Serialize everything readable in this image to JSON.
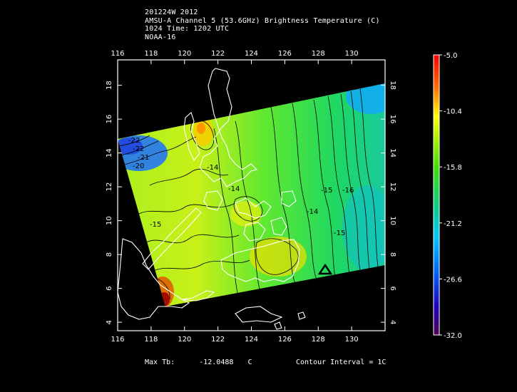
{
  "header": {
    "line1": "201224W 2012",
    "line2": "AMSU-A Channel 5 (53.6GHz) Brightness Temperature (C)",
    "line3": "1024 Time: 1202 UTC",
    "line4": "NOAA-16"
  },
  "map": {
    "lon_ticks": [
      "116",
      "118",
      "120",
      "122",
      "124",
      "126",
      "128",
      "130"
    ],
    "lat_ticks": [
      "4",
      "6",
      "8",
      "10",
      "12",
      "14",
      "16",
      "18"
    ],
    "lon_range": [
      116,
      132
    ],
    "lat_range": [
      3.5,
      19.5
    ],
    "contour_labels": [
      "-22",
      "-22",
      "-21",
      "-20",
      "-14",
      "-14",
      "-15",
      "-15",
      "-16",
      "-15",
      "-14"
    ],
    "storm_marker": "triangle-marker"
  },
  "colorbar": {
    "labels": [
      "-5.0",
      "-10.4",
      "-15.8",
      "-21.2",
      "-26.6",
      "-32.0"
    ],
    "range": [
      -32.0,
      -5.0
    ],
    "colors": [
      "#ff0000",
      "#ff8800",
      "#ffff00",
      "#33dd00",
      "#00d0a0",
      "#00c0ff",
      "#0060ff",
      "#2000c0",
      "#400040"
    ]
  },
  "footer": {
    "max_tb_label": "Max Tb:",
    "max_tb_value": "-12.0488",
    "max_tb_unit": "C",
    "contour_interval": "Contour Interval = 1C"
  }
}
